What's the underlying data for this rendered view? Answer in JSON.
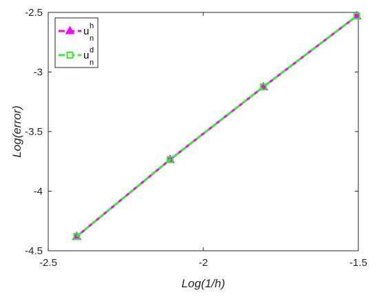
{
  "chart_data": {
    "type": "line",
    "xlabel": "Log(1/h)",
    "ylabel": "Log(error)",
    "xlim": [
      -2.5,
      -1.5
    ],
    "ylim": [
      -4.5,
      -2.5
    ],
    "xticks": [
      -2.5,
      -2,
      -1.5
    ],
    "yticks": [
      -4.5,
      -4,
      -3.5,
      -3,
      -2.5
    ],
    "xtick_labels": [
      "-2.5",
      "-2",
      "-1.5"
    ],
    "ytick_labels": [
      "-4.5",
      "-4",
      "-3.5",
      "-3",
      "-2.5"
    ],
    "grid": false,
    "legend_position": "top-left",
    "series": [
      {
        "name": "u_n^h",
        "name_base": "u",
        "name_sub": "n",
        "name_sup": "h",
        "color": "#ff00ff",
        "marker": "triangle",
        "x": [
          -2.408,
          -2.107,
          -1.806,
          -1.505
        ],
        "y": [
          -4.38,
          -3.735,
          -3.125,
          -2.53
        ]
      },
      {
        "name": "u_n^d",
        "name_base": "u",
        "name_sub": "n",
        "name_sup": "d",
        "color": "#33ee33",
        "marker": "square",
        "x": [
          -2.408,
          -2.107,
          -1.806,
          -1.505
        ],
        "y": [
          -4.38,
          -3.735,
          -3.125,
          -2.53
        ]
      }
    ]
  }
}
